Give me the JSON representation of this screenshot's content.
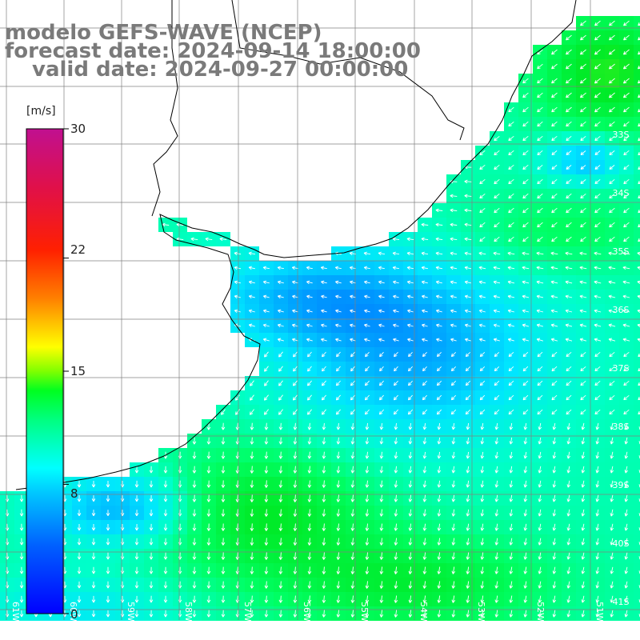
{
  "header": {
    "model": "modelo GEFS-WAVE (NCEP)",
    "forecast": "forecast date: 2024-09-14 18:00:00",
    "valid": "valid date: 2024-09-27 00:00:00"
  },
  "colorbar": {
    "unit": "[m/s]",
    "min": 0,
    "max": 30,
    "ticks": [
      "30",
      "22",
      "15",
      "8",
      "0"
    ],
    "tick_values": [
      30,
      22,
      15,
      8,
      0
    ],
    "gradient": [
      "#0000ff",
      "#00a0ff",
      "#00ffff",
      "#00ff40",
      "#ffff00",
      "#ff8000",
      "#ff0000",
      "#c01060",
      "#c000a0"
    ]
  },
  "map": {
    "lon_labels": [
      "61W",
      "60W",
      "59W",
      "58W",
      "57W",
      "56W",
      "55W",
      "54W",
      "53W",
      "52W",
      "51W"
    ],
    "lat_labels": [
      "33S",
      "34S",
      "35S",
      "36S",
      "37S",
      "38S",
      "39S",
      "40S",
      "41S"
    ],
    "land_color": "#ffffff",
    "coast_color": "#000000",
    "arrow_color": "#ffffff"
  }
}
